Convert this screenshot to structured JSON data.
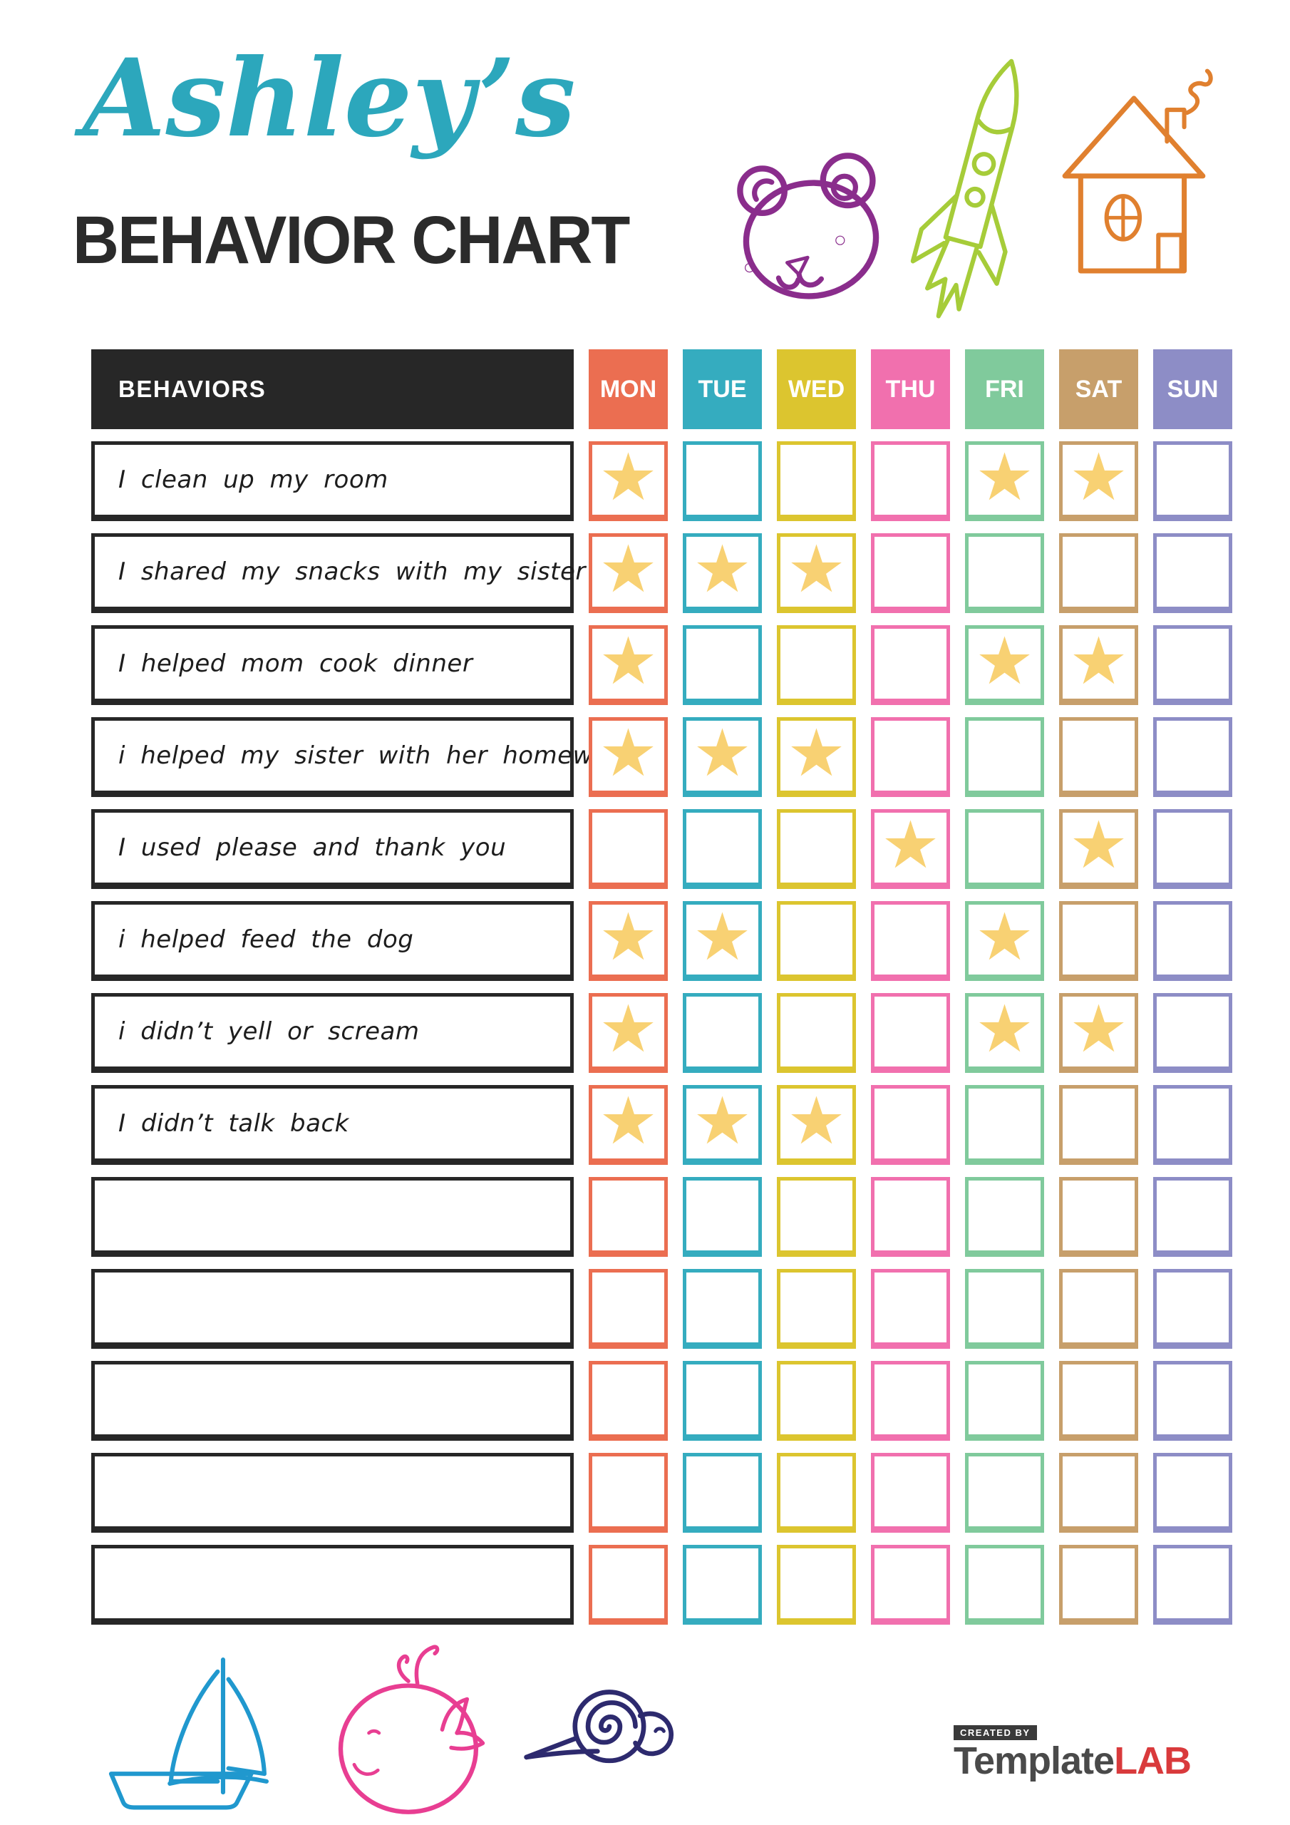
{
  "header": {
    "name": "Ashley’s",
    "title": "BEHAVIOR CHART"
  },
  "table": {
    "behaviors_header": "BEHAVIORS",
    "header_bg": "#272727",
    "star_char": "★",
    "star_color": "#F8D173",
    "days": [
      {
        "label": "MON",
        "color": "#EB6E51"
      },
      {
        "label": "TUE",
        "color": "#35ACBF"
      },
      {
        "label": "WED",
        "color": "#DCC52F"
      },
      {
        "label": "THU",
        "color": "#F170AE"
      },
      {
        "label": "FRI",
        "color": "#80CA9C"
      },
      {
        "label": "SAT",
        "color": "#C79F6B"
      },
      {
        "label": "SUN",
        "color": "#8D8DC6"
      }
    ],
    "rows": [
      {
        "label": "I clean up my room",
        "stars": [
          1,
          0,
          0,
          0,
          1,
          1,
          0
        ]
      },
      {
        "label": "I shared my snacks with my sister",
        "stars": [
          1,
          1,
          1,
          0,
          0,
          0,
          0
        ]
      },
      {
        "label": "I helped mom cook dinner",
        "stars": [
          1,
          0,
          0,
          0,
          1,
          1,
          0
        ]
      },
      {
        "label": "i helped my sister with her homework",
        "stars": [
          1,
          1,
          1,
          0,
          0,
          0,
          0
        ]
      },
      {
        "label": "I used please and thank you",
        "stars": [
          0,
          0,
          0,
          1,
          0,
          1,
          0
        ]
      },
      {
        "label": "i helped feed the dog",
        "stars": [
          1,
          1,
          0,
          0,
          1,
          0,
          0
        ]
      },
      {
        "label": "i didn’t yell or scream",
        "stars": [
          1,
          0,
          0,
          0,
          1,
          1,
          0
        ]
      },
      {
        "label": "I didn’t talk back",
        "stars": [
          1,
          1,
          1,
          0,
          0,
          0,
          0
        ]
      },
      {
        "label": "",
        "stars": [
          0,
          0,
          0,
          0,
          0,
          0,
          0
        ]
      },
      {
        "label": "",
        "stars": [
          0,
          0,
          0,
          0,
          0,
          0,
          0
        ]
      },
      {
        "label": "",
        "stars": [
          0,
          0,
          0,
          0,
          0,
          0,
          0
        ]
      },
      {
        "label": "",
        "stars": [
          0,
          0,
          0,
          0,
          0,
          0,
          0
        ]
      },
      {
        "label": "",
        "stars": [
          0,
          0,
          0,
          0,
          0,
          0,
          0
        ]
      }
    ]
  },
  "footer": {
    "created_by": "CREATED BY",
    "brand_gray": "Template",
    "brand_red": "LAB"
  },
  "colors": {
    "title_script": "#2CA7BC",
    "title_heading": "#2B2B2B",
    "bear": "#8A2D8C",
    "rocket": "#A6CC39",
    "house": "#E0802F",
    "sailboat": "#2098CE",
    "whale": "#E83E92",
    "snail": "#2D2A6E",
    "brand_gray": "#4A4A4A",
    "brand_red": "#D93A3C",
    "badge_bg": "#3A3A3A"
  }
}
